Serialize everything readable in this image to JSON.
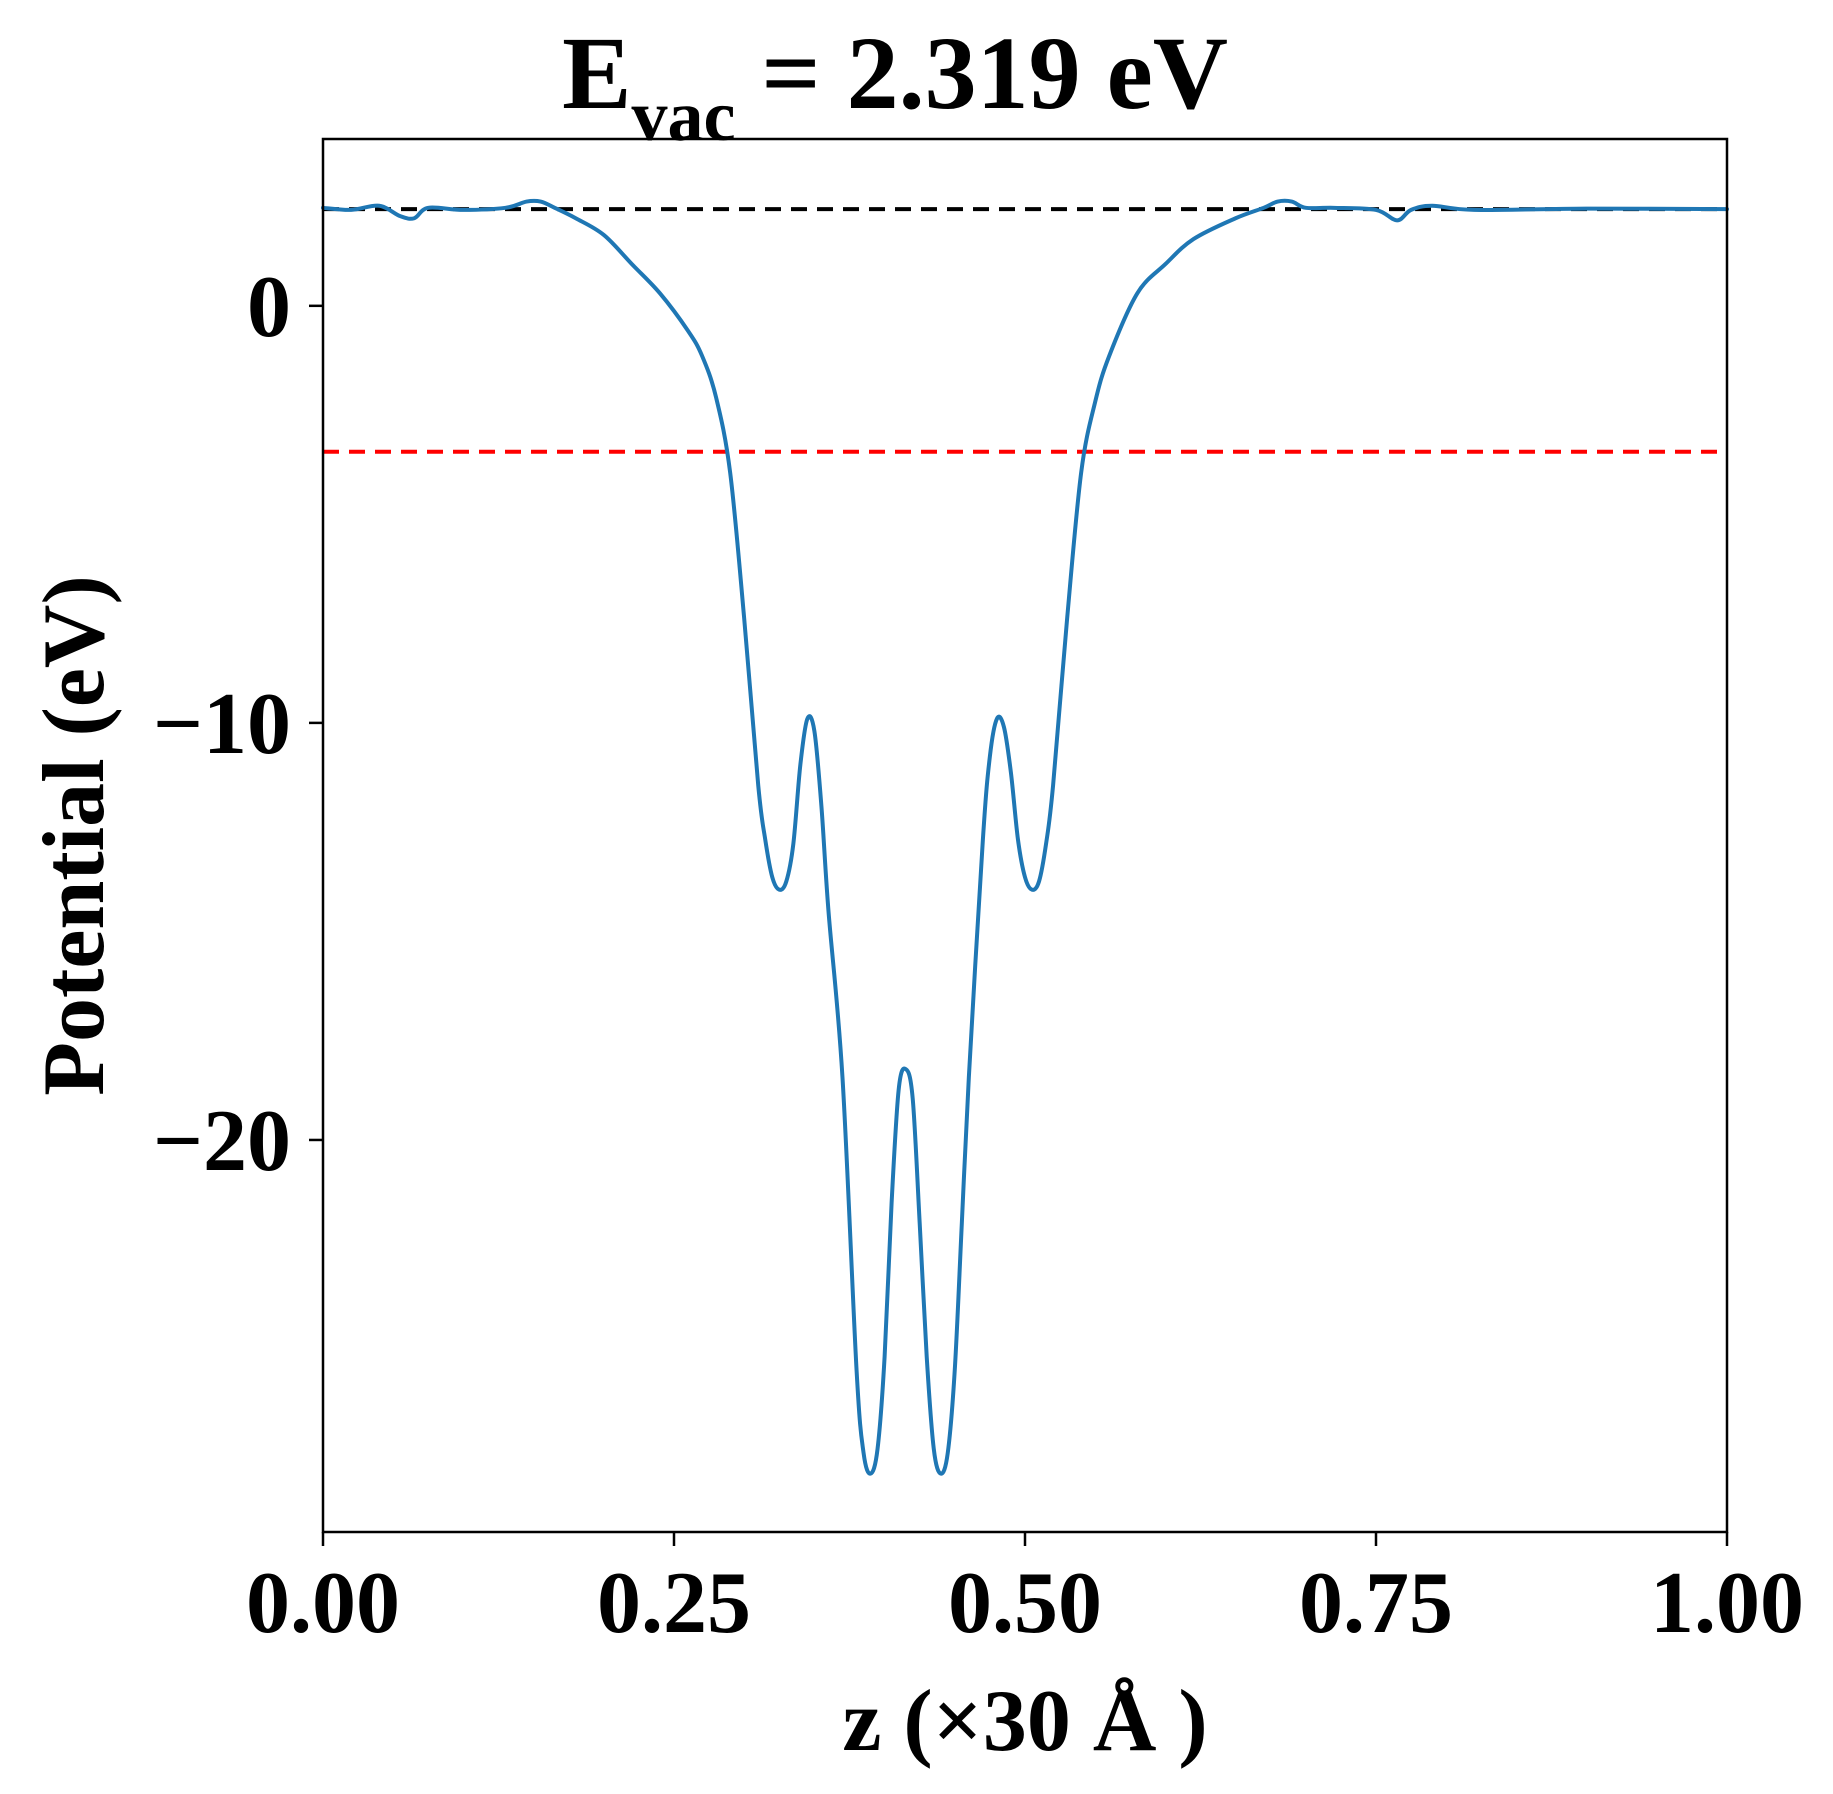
{
  "chart_data": {
    "type": "line",
    "title": {
      "prefix": "E",
      "subscript": "vac",
      "suffix": " = 2.319 eV"
    },
    "xlabel": "z (×30 Å )",
    "ylabel": "Potential (eV)",
    "xlim": [
      0,
      1
    ],
    "ylim": [
      -29.4,
      4.0
    ],
    "xticks": [
      {
        "value": 0.0,
        "label": "0.00"
      },
      {
        "value": 0.25,
        "label": "0.25"
      },
      {
        "value": 0.5,
        "label": "0.50"
      },
      {
        "value": 0.75,
        "label": "0.75"
      },
      {
        "value": 1.0,
        "label": "1.00"
      }
    ],
    "yticks": [
      {
        "value": 0,
        "label": "0"
      },
      {
        "value": -10,
        "label": "−10"
      },
      {
        "value": -20,
        "label": "−20"
      }
    ],
    "grid": false,
    "reference_lines": [
      {
        "y": 2.319,
        "color": "#000000",
        "style": "dashed"
      },
      {
        "y": -3.5,
        "color": "#ff0000",
        "style": "dashed"
      }
    ],
    "series": [
      {
        "color": "#1f77b4",
        "x": [
          0.0,
          0.02,
          0.04,
          0.055,
          0.065,
          0.075,
          0.1,
          0.13,
          0.145,
          0.155,
          0.165,
          0.18,
          0.2,
          0.22,
          0.24,
          0.26,
          0.27,
          0.28,
          0.29,
          0.3,
          0.31,
          0.315,
          0.32,
          0.325,
          0.33,
          0.335,
          0.34,
          0.345,
          0.35,
          0.355,
          0.36,
          0.37,
          0.38,
          0.385,
          0.39,
          0.395,
          0.4,
          0.405,
          0.41,
          0.415,
          0.42,
          0.425,
          0.43,
          0.435,
          0.44,
          0.445,
          0.45,
          0.455,
          0.46,
          0.47,
          0.475,
          0.48,
          0.485,
          0.49,
          0.495,
          0.5,
          0.505,
          0.51,
          0.515,
          0.52,
          0.53,
          0.54,
          0.55,
          0.56,
          0.58,
          0.6,
          0.62,
          0.65,
          0.67,
          0.68,
          0.69,
          0.7,
          0.72,
          0.75,
          0.765,
          0.775,
          0.79,
          0.82,
          0.9,
          1.0
        ],
        "y": [
          2.35,
          2.3,
          2.4,
          2.15,
          2.1,
          2.35,
          2.3,
          2.35,
          2.5,
          2.5,
          2.35,
          2.1,
          1.7,
          1.0,
          0.3,
          -0.6,
          -1.2,
          -2.2,
          -4.0,
          -7.5,
          -11.5,
          -12.8,
          -13.7,
          -14.0,
          -13.8,
          -12.9,
          -11.0,
          -9.9,
          -10.2,
          -12.0,
          -14.5,
          -18.5,
          -25.5,
          -27.5,
          -28.0,
          -27.4,
          -25.2,
          -21.5,
          -18.8,
          -18.3,
          -19.0,
          -22.0,
          -25.2,
          -27.4,
          -28.0,
          -27.5,
          -25.5,
          -22.0,
          -18.5,
          -12.8,
          -10.8,
          -9.9,
          -10.1,
          -11.2,
          -12.8,
          -13.7,
          -14.0,
          -13.8,
          -12.9,
          -11.5,
          -7.5,
          -4.0,
          -2.3,
          -1.2,
          0.3,
          1.0,
          1.6,
          2.1,
          2.35,
          2.5,
          2.5,
          2.35,
          2.35,
          2.3,
          2.05,
          2.3,
          2.4,
          2.3,
          2.33,
          2.32
        ]
      }
    ]
  }
}
